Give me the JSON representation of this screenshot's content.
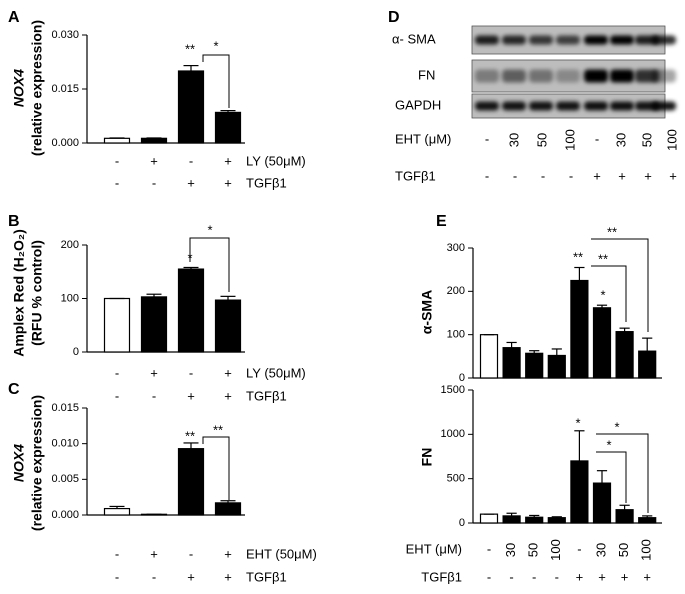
{
  "chart_data": [
    {
      "type": "bar",
      "panel": "A",
      "ylabel": [
        "NOX4",
        "(relative expression)"
      ],
      "treatments": [
        {
          "name": "LY (50μM)",
          "levels": [
            "-",
            "+",
            "-",
            "+"
          ]
        },
        {
          "name": "TGFβ1",
          "levels": [
            "-",
            "-",
            "+",
            "+"
          ]
        }
      ],
      "values": [
        0.0013,
        0.0013,
        0.02,
        0.0085
      ],
      "errors": [
        0.0001,
        0.0001,
        0.0015,
        0.0005
      ],
      "colors": [
        "#ffffff",
        "#000000",
        "#000000",
        "#000000"
      ],
      "ylim": [
        0,
        0.03
      ],
      "yticks": [
        {
          "value": 0,
          "label": "0.000"
        },
        {
          "value": 0.015,
          "label": "0.015"
        },
        {
          "value": 0.03,
          "label": "0.030"
        }
      ],
      "annotations": [
        "**",
        "*"
      ]
    },
    {
      "type": "bar",
      "panel": "B",
      "ylabel": [
        "Amplex Red (H₂O₂)",
        "(RFU % control)"
      ],
      "treatments": [
        {
          "name": "LY (50μM)",
          "levels": [
            "-",
            "+",
            "-",
            "+"
          ]
        },
        {
          "name": "TGFβ1",
          "levels": [
            "-",
            "-",
            "+",
            "+"
          ]
        }
      ],
      "values": [
        100,
        103,
        155,
        97
      ],
      "errors": [
        0,
        5,
        3,
        7
      ],
      "colors": [
        "#ffffff",
        "#000000",
        "#000000",
        "#000000"
      ],
      "ylim": [
        0,
        200
      ],
      "yticks": [
        0,
        100,
        200
      ],
      "annotations": [
        "*",
        "*"
      ]
    },
    {
      "type": "bar",
      "panel": "C",
      "ylabel": [
        "NOX4",
        "(relative expression)"
      ],
      "treatments": [
        {
          "name": "EHT (50μM)",
          "levels": [
            "-",
            "+",
            "-",
            "+"
          ]
        },
        {
          "name": "TGFβ1",
          "levels": [
            "-",
            "-",
            "+",
            "+"
          ]
        }
      ],
      "values": [
        0.0009,
        0.0001,
        0.0093,
        0.0017
      ],
      "errors": [
        0.0003,
        0,
        0.0008,
        0.0003
      ],
      "colors": [
        "#ffffff",
        "#000000",
        "#000000",
        "#000000"
      ],
      "ylim": [
        0,
        0.015
      ],
      "yticks": [
        {
          "value": 0,
          "label": "0.000"
        },
        {
          "value": 0.005,
          "label": "0.005"
        },
        {
          "value": 0.01,
          "label": "0.010"
        },
        {
          "value": 0.015,
          "label": "0.015"
        }
      ],
      "annotations": [
        "**",
        "**"
      ]
    },
    {
      "type": "bar",
      "panel": "E",
      "ylabel": [
        "α-SMA"
      ],
      "values": [
        100,
        70,
        57,
        52,
        225,
        162,
        107,
        62
      ],
      "errors": [
        0,
        12,
        6,
        15,
        30,
        6,
        8,
        30
      ],
      "colors": [
        "#ffffff",
        "#000000",
        "#000000",
        "#000000",
        "#000000",
        "#000000",
        "#000000",
        "#000000"
      ],
      "ylim": [
        0,
        300
      ],
      "yticks": [
        0,
        100,
        200,
        300
      ],
      "annotations": [
        "**",
        "*",
        "**",
        "**"
      ]
    },
    {
      "type": "bar",
      "ylabel": [
        "FN"
      ],
      "treatments": [
        {
          "name": "EHT (μM)",
          "levels": [
            "-",
            "30",
            "50",
            "100",
            "-",
            "30",
            "50",
            "100"
          ]
        },
        {
          "name": "TGFβ1",
          "levels": [
            "-",
            "-",
            "-",
            "-",
            "+",
            "+",
            "+",
            "+"
          ]
        }
      ],
      "values": [
        100,
        80,
        65,
        60,
        700,
        450,
        150,
        60
      ],
      "errors": [
        0,
        30,
        20,
        10,
        340,
        140,
        50,
        20
      ],
      "colors": [
        "#ffffff",
        "#000000",
        "#000000",
        "#000000",
        "#000000",
        "#000000",
        "#000000",
        "#000000"
      ],
      "ylim": [
        0,
        1500
      ],
      "yticks": [
        0,
        500,
        1000,
        1500
      ],
      "annotations": [
        "*",
        "*",
        "*"
      ]
    }
  ],
  "blot": {
    "panel": "D",
    "rows": [
      "α- SMA",
      "FN",
      "GAPDH"
    ],
    "treatments": [
      {
        "name": "EHT (μM)",
        "levels": [
          "-",
          "30",
          "50",
          "100",
          "-",
          "30",
          "50",
          "100"
        ]
      },
      {
        "name": "TGFβ1",
        "levels": [
          "-",
          "-",
          "-",
          "-",
          "+",
          "+",
          "+",
          "+"
        ]
      }
    ]
  }
}
